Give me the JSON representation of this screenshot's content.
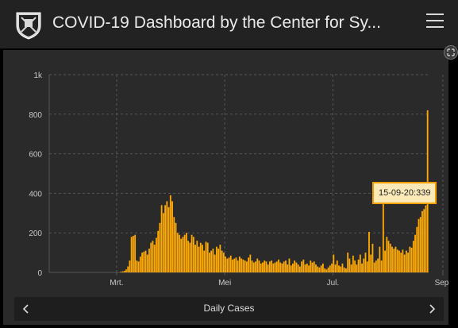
{
  "header": {
    "title": "COVID-19 Dashboard by the Center for Sy..."
  },
  "footer": {
    "label": "Daily Cases"
  },
  "tooltip": {
    "text": "15-09-20:339"
  },
  "colors": {
    "bar": "#ffaa00",
    "panel": "#2a2a2a",
    "grid": "#555555",
    "text": "#c8c8c8"
  },
  "chart_data": {
    "type": "bar",
    "title": "",
    "xlabel": "Daily Cases",
    "ylabel": "",
    "ylim": [
      0,
      1000
    ],
    "yticks": [
      {
        "value": 0,
        "label": "0"
      },
      {
        "value": 200,
        "label": "200"
      },
      {
        "value": 400,
        "label": "400"
      },
      {
        "value": 600,
        "label": "600"
      },
      {
        "value": 800,
        "label": "800"
      },
      {
        "value": 1000,
        "label": "1k"
      }
    ],
    "xticks": [
      {
        "index": 38,
        "label": "Mrt."
      },
      {
        "index": 99,
        "label": "Mei"
      },
      {
        "index": 160,
        "label": "Jul."
      },
      {
        "index": 222,
        "label": "Sep."
      }
    ],
    "values": [
      0,
      0,
      0,
      0,
      0,
      0,
      0,
      0,
      0,
      0,
      0,
      0,
      0,
      0,
      0,
      0,
      0,
      0,
      0,
      0,
      0,
      0,
      0,
      0,
      0,
      0,
      0,
      0,
      0,
      0,
      0,
      0,
      0,
      0,
      0,
      0,
      0,
      0,
      0,
      0,
      3,
      5,
      8,
      15,
      30,
      60,
      180,
      185,
      190,
      60,
      55,
      80,
      100,
      105,
      110,
      90,
      120,
      150,
      160,
      140,
      175,
      210,
      250,
      340,
      300,
      340,
      360,
      330,
      390,
      360,
      280,
      250,
      200,
      190,
      170,
      180,
      190,
      200,
      160,
      150,
      190,
      180,
      140,
      160,
      130,
      150,
      140,
      110,
      155,
      150,
      100,
      110,
      120,
      90,
      130,
      120,
      140,
      110,
      100,
      80,
      70,
      75,
      85,
      65,
      70,
      75,
      60,
      80,
      70,
      65,
      60,
      55,
      75,
      90,
      60,
      50,
      55,
      70,
      60,
      45,
      50,
      60,
      55,
      40,
      55,
      60,
      45,
      50,
      55,
      65,
      50,
      45,
      55,
      60,
      40,
      70,
      35,
      45,
      60,
      50,
      40,
      30,
      55,
      65,
      40,
      45,
      35,
      60,
      50,
      55,
      40,
      30,
      25,
      35,
      45,
      20,
      15,
      25,
      35,
      45,
      90,
      40,
      60,
      35,
      30,
      45,
      25,
      20,
      100,
      70,
      40,
      85,
      60,
      40,
      65,
      90,
      45,
      70,
      100,
      55,
      205,
      90,
      145,
      50,
      60,
      70,
      130,
      60,
      375,
      110,
      180,
      160,
      145,
      130,
      120,
      130,
      115,
      110,
      100,
      115,
      90,
      110,
      100,
      130,
      125,
      160,
      190,
      230,
      270,
      280,
      310,
      320,
      339,
      820
    ]
  }
}
